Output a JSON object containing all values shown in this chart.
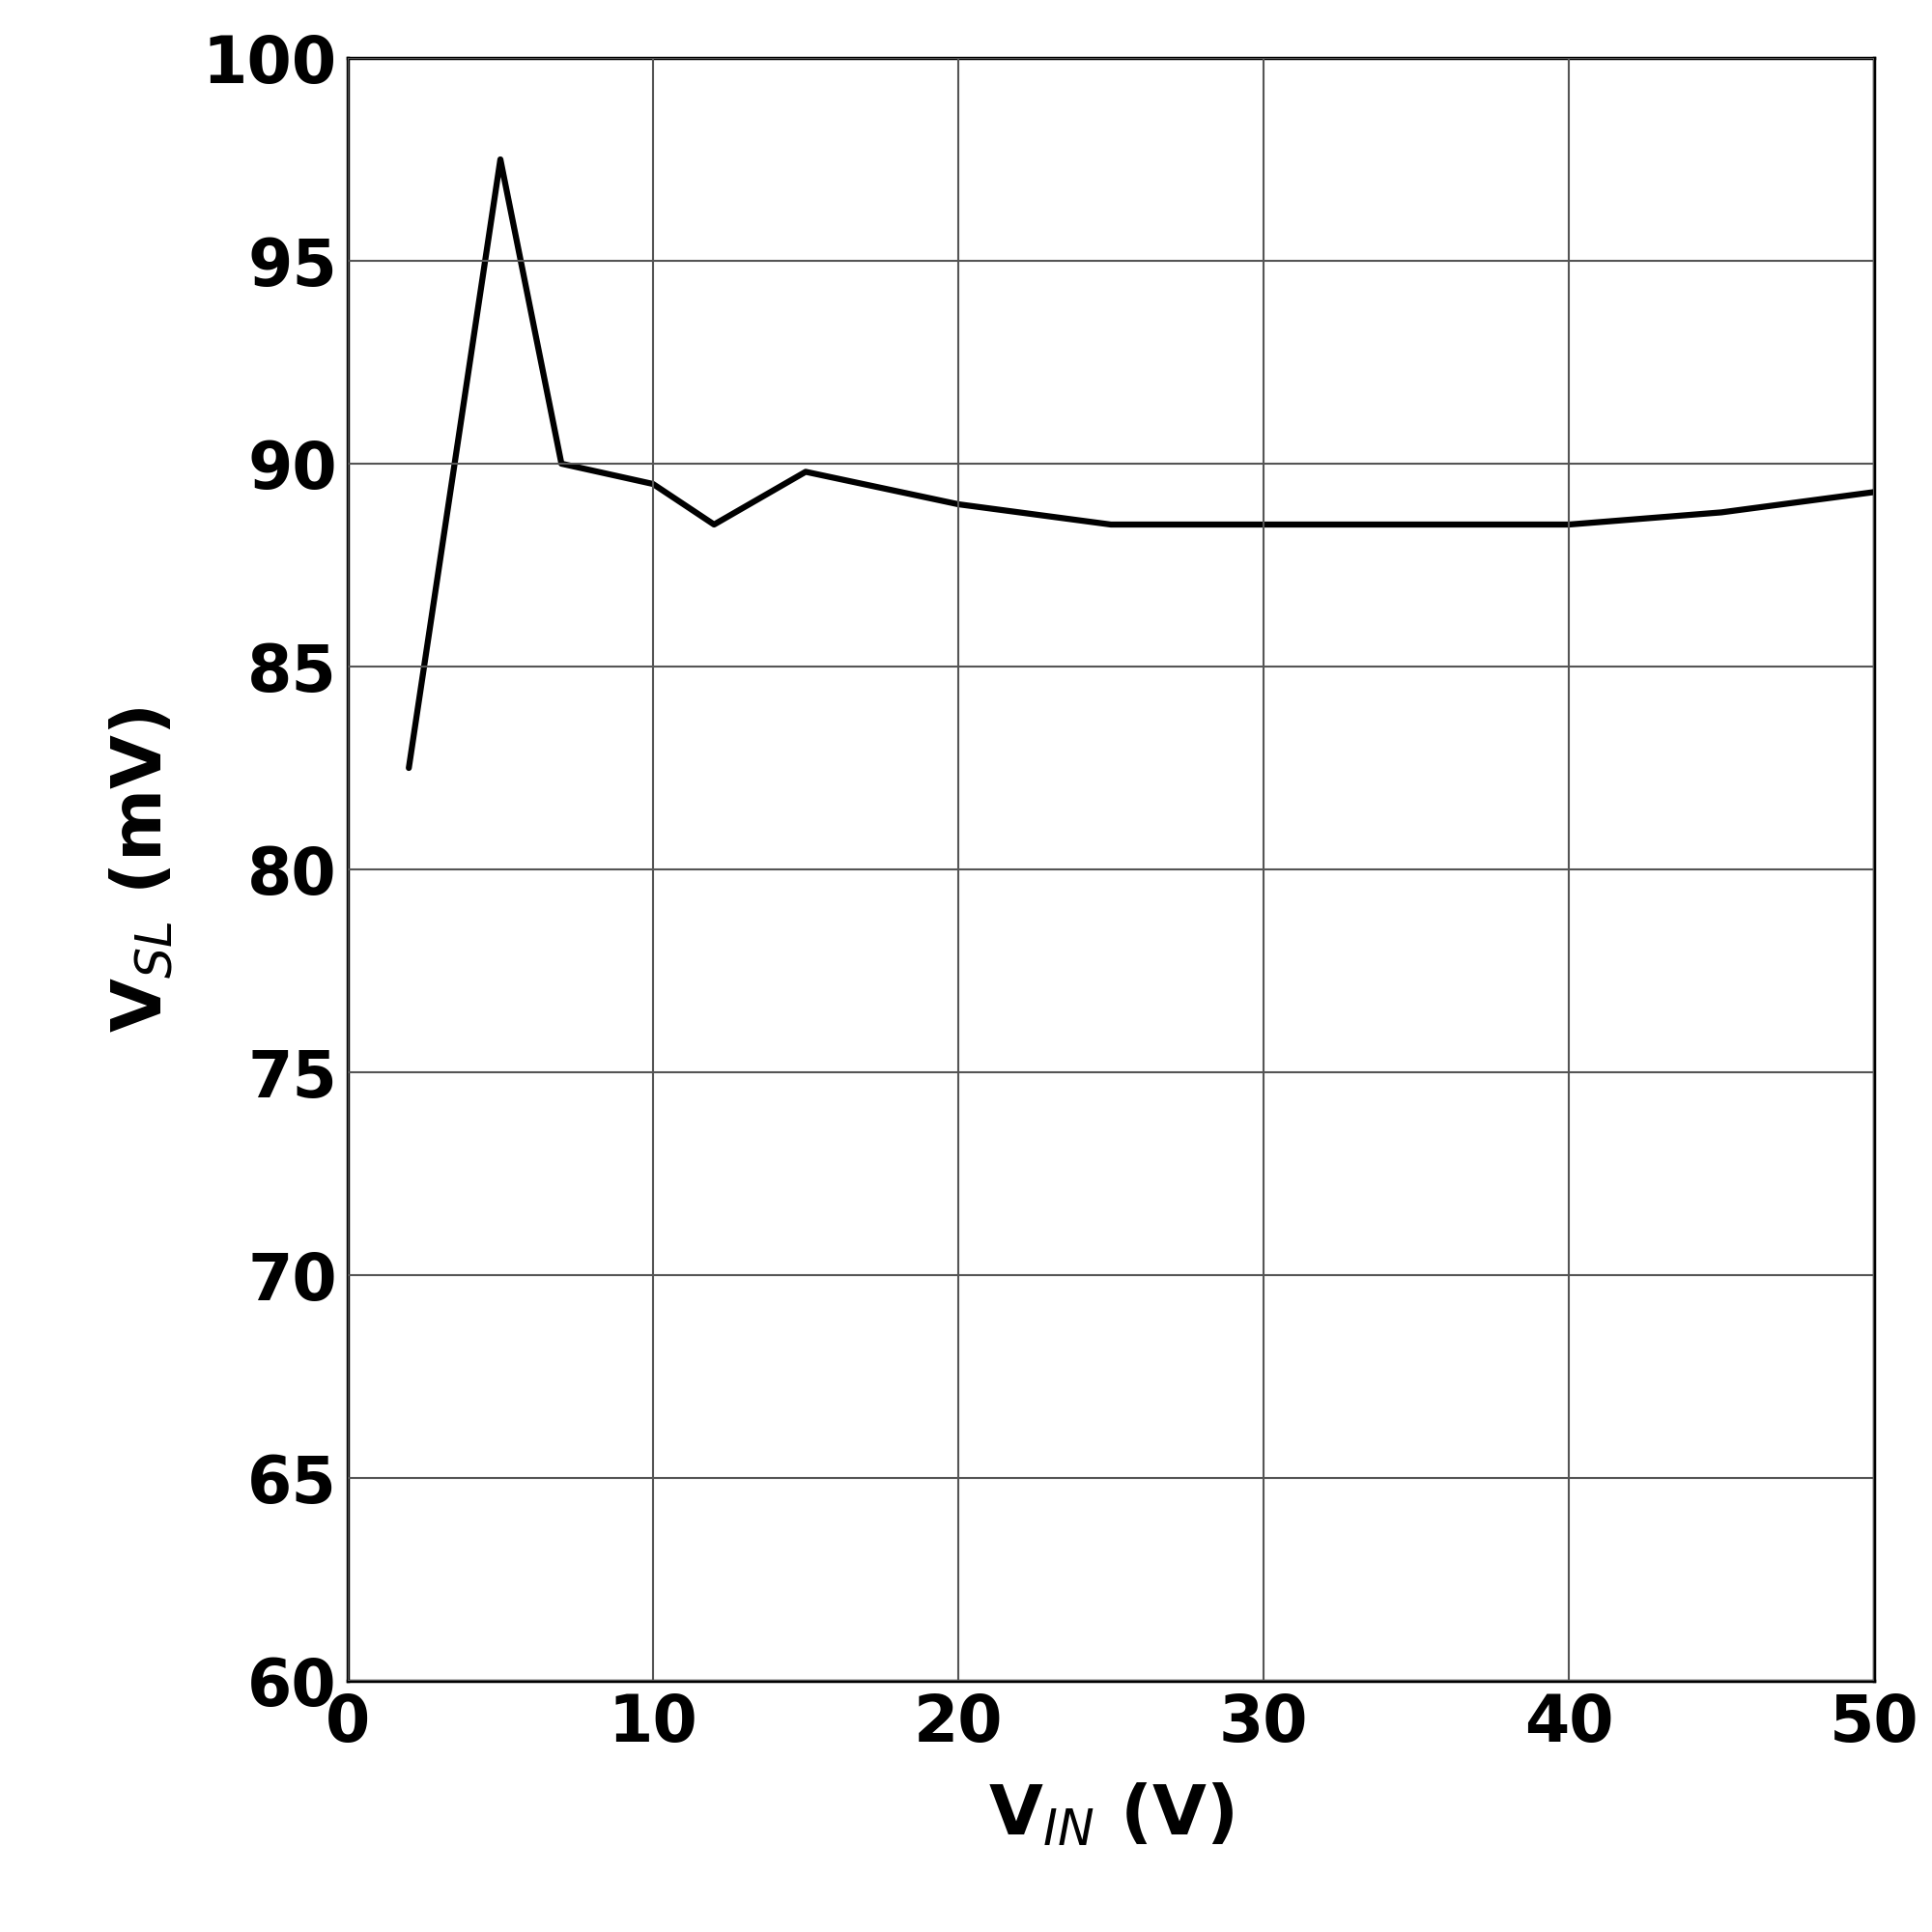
{
  "x": [
    2,
    5,
    7,
    10,
    12,
    15,
    20,
    25,
    30,
    35,
    40,
    45,
    50
  ],
  "y": [
    82.5,
    97.5,
    90.0,
    89.5,
    88.5,
    89.8,
    89.0,
    88.5,
    88.5,
    88.5,
    88.5,
    88.8,
    89.3
  ],
  "line_color": "#000000",
  "line_width": 4.5,
  "xlim": [
    0,
    50
  ],
  "ylim": [
    60,
    100
  ],
  "xticks": [
    0,
    10,
    20,
    30,
    40,
    50
  ],
  "yticks": [
    60,
    65,
    70,
    75,
    80,
    85,
    90,
    95,
    100
  ],
  "xlabel": "V$_{IN}$ (V)",
  "ylabel": "V$_{SL}$ (mV)",
  "xlabel_fontsize": 52,
  "ylabel_fontsize": 52,
  "tick_fontsize": 48,
  "grid_color": "#555555",
  "grid_linewidth": 1.5,
  "background_color": "#ffffff",
  "spine_color": "#000000",
  "spine_linewidth": 2.5
}
